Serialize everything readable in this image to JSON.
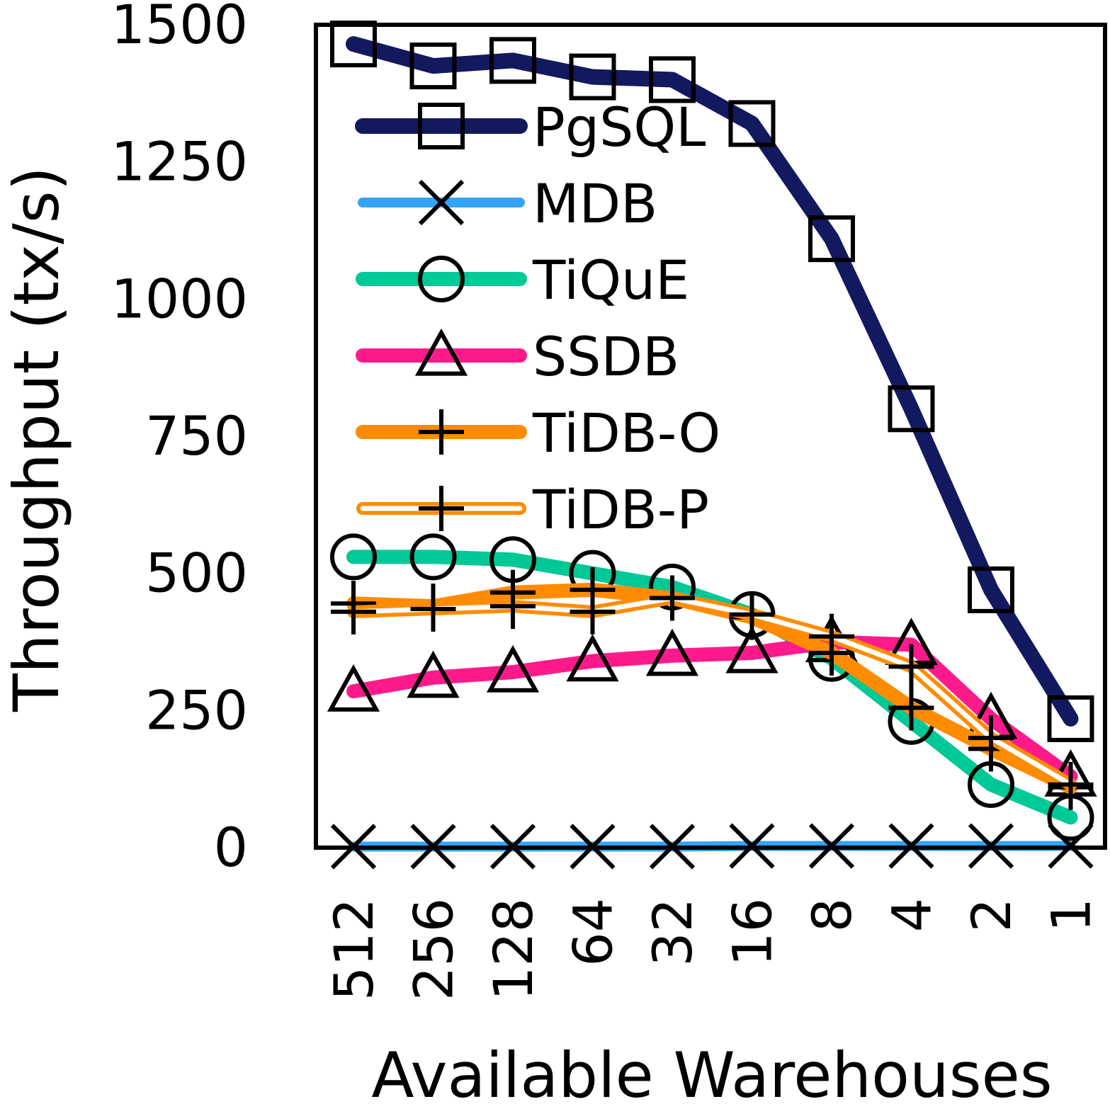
{
  "chart_data": {
    "type": "line",
    "xlabel": "Available Warehouses",
    "ylabel": "Throughput (tx/s)",
    "categories": [
      "512",
      "256",
      "128",
      "64",
      "32",
      "16",
      "8",
      "4",
      "2",
      "1"
    ],
    "ylim": [
      0,
      1500
    ],
    "yticks": [
      0,
      250,
      500,
      750,
      1000,
      1250,
      1500
    ],
    "grid": false,
    "legend_position": "upper-center",
    "series": [
      {
        "name": "PgSQL",
        "color": "#12195e",
        "marker": "square",
        "style": "solid",
        "values": [
          1465,
          1425,
          1435,
          1405,
          1400,
          1320,
          1110,
          800,
          470,
          235
        ]
      },
      {
        "name": "MDB",
        "color": "#33a4f7",
        "marker": "x",
        "style": "solid",
        "values": [
          2,
          2,
          2,
          2,
          2,
          3,
          3,
          3,
          3,
          3
        ]
      },
      {
        "name": "TiQuE",
        "color": "#00c896",
        "marker": "circle",
        "style": "solid",
        "values": [
          530,
          530,
          525,
          500,
          475,
          425,
          345,
          230,
          115,
          55
        ]
      },
      {
        "name": "SSDB",
        "color": "#ff1a8c",
        "marker": "triangle",
        "style": "solid",
        "values": [
          285,
          310,
          320,
          340,
          350,
          355,
          375,
          370,
          235,
          130
        ]
      },
      {
        "name": "TiDB-O",
        "color": "#ff8c00",
        "marker": "plus",
        "style": "solid",
        "values": [
          445,
          440,
          465,
          470,
          455,
          420,
          355,
          255,
          180,
          110
        ]
      },
      {
        "name": "TiDB-P",
        "color": "#ff8c00",
        "marker": "plus",
        "style": "double",
        "values": [
          430,
          435,
          440,
          430,
          455,
          425,
          385,
          330,
          200,
          115
        ]
      }
    ]
  }
}
